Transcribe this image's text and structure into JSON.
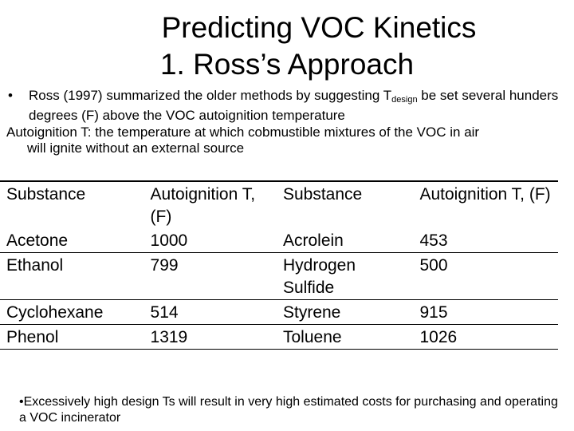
{
  "title": {
    "line1": "Predicting VOC Kinetics",
    "line2": "1. Ross’s Approach"
  },
  "intro": {
    "bullet_symbol": "•",
    "bullet_before": "Ross (1997) summarized the older methods by suggesting T",
    "bullet_sub": "design",
    "bullet_after": " be set several hunders degrees (F) above the VOC autoignition temperature",
    "definition_line1": "Autoignition T: the temperature at which cobmustible mixtures of the VOC in air",
    "definition_line2": "will ignite without an external source"
  },
  "table": {
    "headers": [
      "Substance",
      "Autoignition T, (F)",
      "Substance",
      "Autoignition T, (F)"
    ],
    "rows": [
      [
        "Acetone",
        "1000",
        "Acrolein",
        "453"
      ],
      [
        "Ethanol",
        "799",
        "Hydrogen Sulfide",
        "500"
      ],
      [
        "Cyclohexane",
        "514",
        "Styrene",
        "915"
      ],
      [
        "Phenol",
        "1319",
        "Toluene",
        "1026"
      ]
    ]
  },
  "note": "•Excessively high design Ts will result in very high estimated costs for purchasing and operating a VOC incinerator"
}
